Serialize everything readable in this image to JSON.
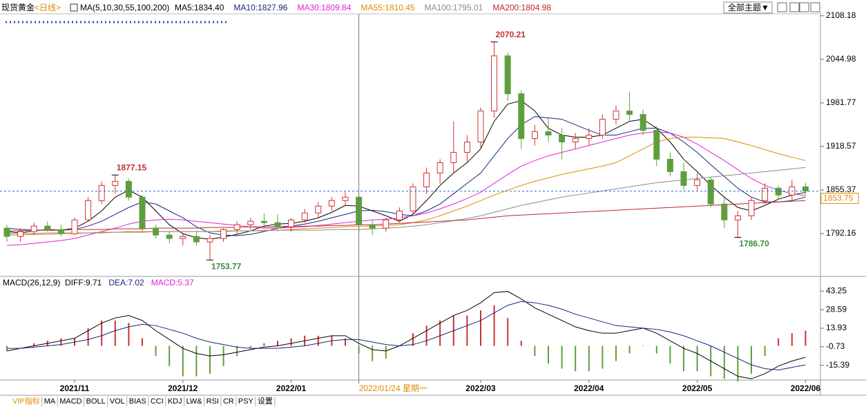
{
  "header": {
    "title": "现货黄金",
    "period": "<日线>",
    "theme_button": "全部主题▼"
  },
  "toolbar": {
    "tabs": [
      "VIP指标",
      "MA",
      "MACD",
      "BOLL",
      "VOL",
      "BIAS",
      "CCI",
      "KDJ",
      "LW&",
      "RSI",
      "CR",
      "PSY",
      "设置"
    ]
  },
  "chart_data": [
    {
      "type": "candlestick",
      "title": "MA(5,10,30,55,100,200)",
      "rise_color": "#d23030",
      "fall_color": "#5e9e3e",
      "open": [
        1800,
        1788,
        1795,
        1803,
        1798,
        1792,
        1812,
        1840,
        1862,
        1868,
        1845,
        1800,
        1790,
        1785,
        1788,
        1780,
        1785,
        1798,
        1805,
        1810,
        1808,
        1802,
        1812,
        1822,
        1832,
        1840,
        1845,
        1805,
        1800,
        1812,
        1825,
        1860,
        1880,
        1895,
        1910,
        1925,
        1970,
        2050,
        1995,
        1930,
        1940,
        1935,
        1925,
        1930,
        1935,
        1958,
        1970,
        1965,
        1942,
        1900,
        1882,
        1862,
        1870,
        1835,
        1812,
        1818,
        1840,
        1858,
        1848,
        1860
      ],
      "high": [
        1805,
        1800,
        1808,
        1810,
        1805,
        1815,
        1845,
        1868,
        1877.15,
        1872,
        1848,
        1805,
        1795,
        1792,
        1795,
        1790,
        1800,
        1810,
        1815,
        1822,
        1820,
        1815,
        1828,
        1838,
        1845,
        1853,
        1848,
        1812,
        1815,
        1830,
        1865,
        1888,
        1900,
        1955,
        1935,
        1975,
        2070.21,
        2055,
        2000,
        1950,
        1960,
        1945,
        1938,
        1945,
        1965,
        1978,
        1998,
        1972,
        1948,
        1910,
        1895,
        1880,
        1875,
        1845,
        1825,
        1845,
        1865,
        1862,
        1870,
        1866
      ],
      "low": [
        1780,
        1780,
        1790,
        1795,
        1788,
        1790,
        1810,
        1835,
        1850,
        1840,
        1795,
        1785,
        1778,
        1775,
        1775,
        1753.77,
        1780,
        1792,
        1798,
        1800,
        1795,
        1795,
        1808,
        1815,
        1825,
        1832,
        1795,
        1790,
        1795,
        1808,
        1820,
        1850,
        1865,
        1880,
        1895,
        1915,
        1960,
        1985,
        1915,
        1920,
        1925,
        1900,
        1915,
        1920,
        1930,
        1950,
        1955,
        1935,
        1890,
        1875,
        1855,
        1855,
        1830,
        1800,
        1786.7,
        1812,
        1835,
        1842,
        1840,
        1848
      ],
      "close": [
        1788,
        1795,
        1803,
        1798,
        1792,
        1812,
        1840,
        1862,
        1868,
        1845,
        1800,
        1790,
        1785,
        1788,
        1780,
        1785,
        1798,
        1805,
        1810,
        1808,
        1802,
        1812,
        1822,
        1832,
        1840,
        1845,
        1805,
        1800,
        1812,
        1825,
        1860,
        1880,
        1895,
        1910,
        1925,
        1970,
        2050,
        1995,
        1930,
        1940,
        1935,
        1925,
        1930,
        1935,
        1958,
        1970,
        1965,
        1942,
        1900,
        1882,
        1862,
        1870,
        1835,
        1812,
        1818,
        1840,
        1858,
        1848,
        1860,
        1853.75
      ],
      "series": [
        {
          "label": "MA5:1834.40",
          "color": "#000000",
          "values": [
            1795,
            1793,
            1796,
            1798,
            1797,
            1800,
            1810,
            1825,
            1845,
            1855,
            1845,
            1825,
            1805,
            1792,
            1786,
            1784,
            1787,
            1791,
            1796,
            1803,
            1806,
            1807,
            1810,
            1815,
            1823,
            1833,
            1832,
            1825,
            1818,
            1810,
            1820,
            1840,
            1862,
            1880,
            1895,
            1915,
            1955,
            1980,
            1985,
            1970,
            1945,
            1935,
            1932,
            1932,
            1935,
            1945,
            1955,
            1958,
            1945,
            1925,
            1900,
            1882,
            1862,
            1845,
            1830,
            1825,
            1833,
            1842,
            1848,
            1852
          ]
        },
        {
          "label": "MA10:1827.96",
          "color": "#1a237e",
          "values": [
            1800,
            1798,
            1797,
            1797,
            1797,
            1798,
            1803,
            1810,
            1820,
            1830,
            1838,
            1835,
            1825,
            1815,
            1802,
            1793,
            1790,
            1789,
            1791,
            1795,
            1800,
            1803,
            1806,
            1810,
            1815,
            1820,
            1825,
            1826,
            1824,
            1820,
            1818,
            1825,
            1835,
            1850,
            1865,
            1880,
            1905,
            1930,
            1950,
            1962,
            1960,
            1958,
            1950,
            1942,
            1935,
            1935,
            1940,
            1945,
            1945,
            1938,
            1925,
            1910,
            1892,
            1875,
            1858,
            1845,
            1838,
            1838,
            1840,
            1845
          ]
        },
        {
          "label": "MA30:1809.84",
          "color": "#e020d8",
          "values": [
            1775,
            1776,
            1778,
            1780,
            1782,
            1785,
            1790,
            1795,
            1800,
            1806,
            1810,
            1812,
            1813,
            1812,
            1810,
            1808,
            1806,
            1804,
            1802,
            1800,
            1800,
            1801,
            1802,
            1804,
            1806,
            1808,
            1810,
            1812,
            1813,
            1815,
            1818,
            1822,
            1828,
            1835,
            1843,
            1852,
            1865,
            1878,
            1890,
            1898,
            1905,
            1910,
            1915,
            1920,
            1925,
            1930,
            1935,
            1938,
            1940,
            1938,
            1932,
            1922,
            1910,
            1898,
            1885,
            1872,
            1862,
            1855,
            1850,
            1847
          ]
        },
        {
          "label": "MA55:1810.45",
          "color": "#e08a00",
          "values": [
            1790,
            1790,
            1791,
            1791,
            1792,
            1792,
            1793,
            1793,
            1794,
            1795,
            1795,
            1795,
            1795,
            1795,
            1795,
            1795,
            1795,
            1796,
            1796,
            1797,
            1797,
            1798,
            1799,
            1800,
            1801,
            1802,
            1803,
            1803,
            1804,
            1805,
            1808,
            1812,
            1818,
            1825,
            1832,
            1840,
            1848,
            1855,
            1862,
            1868,
            1873,
            1878,
            1882,
            1886,
            1890,
            1895,
            1905,
            1915,
            1925,
            1930,
            1932,
            1932,
            1931,
            1930,
            1925,
            1920,
            1914,
            1908,
            1903,
            1898
          ]
        },
        {
          "label": "MA100:1795.01",
          "color": "#8a8a8a",
          "values": [
            1792,
            1792,
            1792,
            1793,
            1793,
            1793,
            1793,
            1794,
            1794,
            1794,
            1794,
            1795,
            1795,
            1795,
            1795,
            1795,
            1796,
            1796,
            1796,
            1796,
            1797,
            1797,
            1797,
            1797,
            1798,
            1798,
            1798,
            1799,
            1800,
            1801,
            1803,
            1805,
            1808,
            1811,
            1814,
            1818,
            1823,
            1828,
            1833,
            1837,
            1841,
            1845,
            1848,
            1851,
            1854,
            1857,
            1860,
            1863,
            1866,
            1868,
            1870,
            1872,
            1874,
            1876,
            1878,
            1880,
            1882,
            1884,
            1886,
            1888
          ]
        },
        {
          "label": "MA200:1804.98",
          "color": "#c02828",
          "values": [
            1796,
            1796,
            1797,
            1797,
            1797,
            1798,
            1798,
            1798,
            1799,
            1799,
            1799,
            1800,
            1800,
            1800,
            1800,
            1801,
            1801,
            1801,
            1802,
            1802,
            1802,
            1803,
            1803,
            1803,
            1804,
            1804,
            1805,
            1805,
            1806,
            1807,
            1808,
            1809,
            1810,
            1811,
            1812,
            1814,
            1816,
            1818,
            1819,
            1820,
            1821,
            1822,
            1823,
            1824,
            1825,
            1826,
            1827,
            1828,
            1829,
            1830,
            1831,
            1832,
            1833,
            1834,
            1835,
            1836,
            1837,
            1838,
            1839,
            1840
          ]
        }
      ],
      "ylim": [
        1730,
        2113
      ],
      "yticks": [
        1792.16,
        1855.37,
        1918.57,
        1981.77,
        2044.98,
        2108.18
      ],
      "xticks": [
        {
          "value": 5,
          "label": "2021/11"
        },
        {
          "value": 13,
          "label": "2021/12"
        },
        {
          "value": 21,
          "label": "2022/01"
        },
        {
          "value": 35,
          "label": "2022/03"
        },
        {
          "value": 43,
          "label": "2022/04"
        },
        {
          "value": 51,
          "label": "2022/05"
        },
        {
          "value": 59,
          "label": "2022/06"
        }
      ],
      "annotations": [
        {
          "candle": 8,
          "end": "high",
          "label": "1877.15"
        },
        {
          "candle": 15,
          "end": "low",
          "label": "1753.77"
        },
        {
          "candle": 36,
          "end": "high",
          "label": "2070.21"
        },
        {
          "candle": 54,
          "end": "low",
          "label": "1786.70"
        }
      ],
      "crosshair": {
        "candle": 26,
        "label": "2022/01/24 星期一"
      }
    },
    {
      "type": "macd",
      "title": "MACD(26,12,9)",
      "series": [
        {
          "label": "DIFF:9.71",
          "color": "#000000",
          "values": [
            -4,
            -2,
            0,
            2,
            4,
            6,
            12,
            18,
            22,
            24,
            20,
            12,
            5,
            -2,
            -6,
            -8,
            -7,
            -5,
            -3,
            -1,
            0,
            2,
            4,
            6,
            8,
            8,
            2,
            -3,
            -4,
            0,
            6,
            12,
            18,
            24,
            28,
            34,
            42,
            43,
            37,
            30,
            25,
            20,
            15,
            12,
            10,
            10,
            12,
            14,
            10,
            4,
            -2,
            -6,
            -12,
            -18,
            -24,
            -26,
            -22,
            -16,
            -12,
            -9
          ]
        },
        {
          "label": "DEA:7.02",
          "color": "#1a237e",
          "values": [
            -2,
            -2,
            -1,
            0,
            1,
            3,
            5,
            8,
            12,
            15,
            17,
            16,
            13,
            10,
            6,
            3,
            1,
            -1,
            -2,
            -2,
            -2,
            -1,
            0,
            2,
            4,
            5,
            5,
            3,
            1,
            0,
            1,
            4,
            8,
            12,
            16,
            20,
            26,
            32,
            35,
            34,
            32,
            29,
            25,
            22,
            19,
            16,
            15,
            14,
            13,
            11,
            8,
            4,
            0,
            -5,
            -10,
            -15,
            -18,
            -19,
            -17,
            -15
          ]
        }
      ],
      "histogram": {
        "label": "MACD:5.37",
        "color": "#e020d8",
        "rise_color": "#c83030",
        "fall_color": "#5e9e3e",
        "values": [
          -4,
          0,
          2,
          4,
          6,
          6,
          14,
          20,
          20,
          18,
          6,
          -8,
          -16,
          -24,
          -24,
          -22,
          -16,
          -8,
          -2,
          2,
          4,
          6,
          8,
          8,
          8,
          6,
          -6,
          -12,
          -10,
          0,
          10,
          16,
          20,
          24,
          24,
          28,
          32,
          22,
          4,
          -8,
          -14,
          -18,
          -20,
          -20,
          -18,
          -12,
          -6,
          0,
          -6,
          -14,
          -20,
          -20,
          -24,
          -26,
          -28,
          -22,
          -8,
          6,
          10,
          12
        ]
      },
      "ylim": [
        -27,
        53.2
      ],
      "yticks": [
        -15.39,
        -0.73,
        13.93,
        28.59,
        43.25
      ]
    }
  ]
}
